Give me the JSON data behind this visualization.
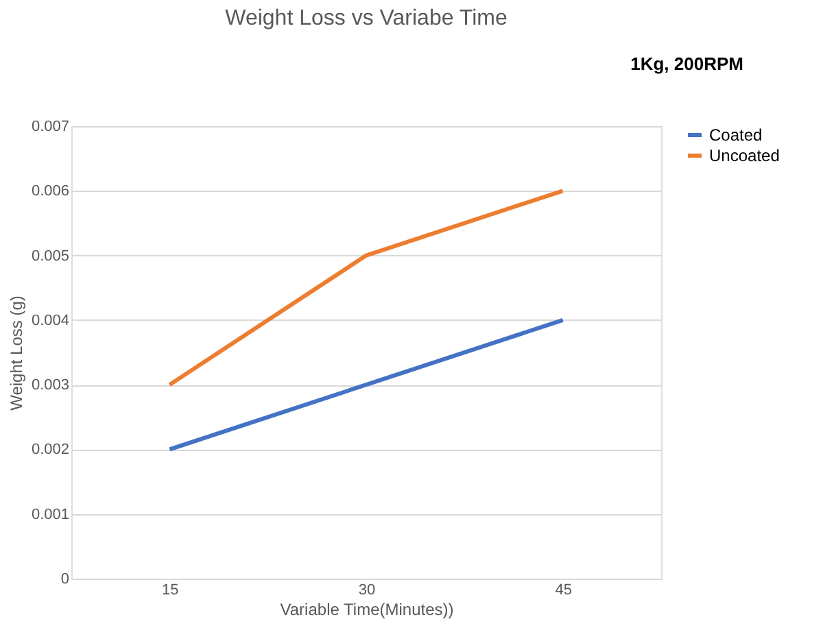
{
  "chart_data": {
    "type": "line",
    "title": "Weight Loss vs Variabe Time",
    "xlabel": "Variable Time(Minutes))",
    "ylabel": "Weight Loss (g)",
    "categories": [
      "15",
      "30",
      "45"
    ],
    "series": [
      {
        "name": "Coated",
        "color": "#4472c4",
        "values": [
          0.002,
          0.003,
          0.004
        ]
      },
      {
        "name": "Uncoated",
        "color": "#ed7d31",
        "values": [
          0.003,
          0.005,
          0.006
        ]
      }
    ],
    "ylim": [
      0,
      0.007
    ],
    "yticks": [
      0,
      0.001,
      0.002,
      0.003,
      0.004,
      0.005,
      0.006,
      0.007
    ],
    "grid": "y",
    "legend": "right",
    "annotations": [
      "1Kg, 200RPM"
    ]
  }
}
